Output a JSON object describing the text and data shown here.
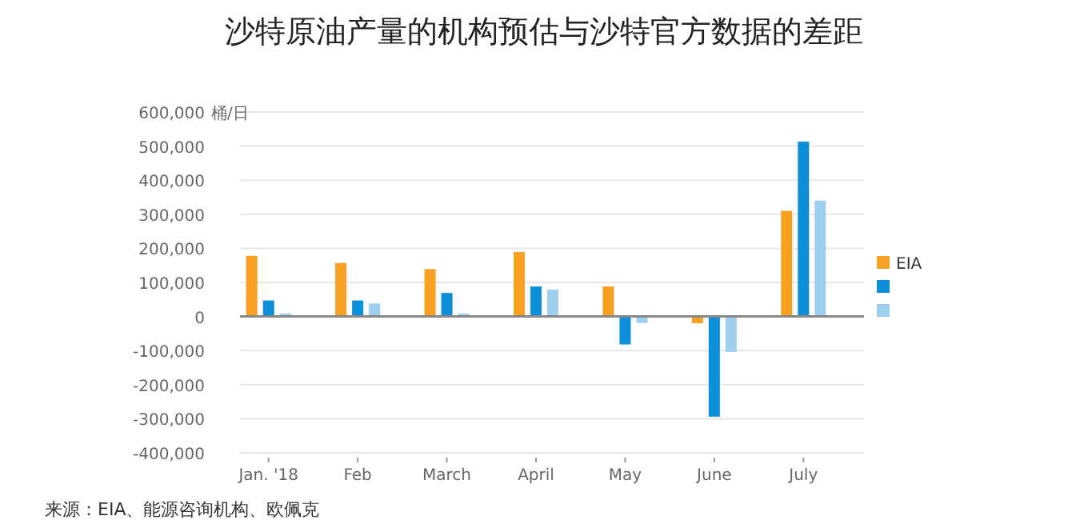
{
  "chart_data": {
    "type": "bar",
    "title": "沙特原油产量的机构预估与沙特官方数据的差距",
    "categories": [
      "Jan. '18",
      "Feb",
      "March",
      "April",
      "May",
      "June",
      "July"
    ],
    "series": [
      {
        "name": "EIA",
        "color": "#f7a021",
        "values": [
          178000,
          157000,
          139000,
          189000,
          88000,
          -20000,
          310000
        ]
      },
      {
        "color": "#0a8fd8",
        "values": [
          47000,
          47000,
          69000,
          88000,
          -82000,
          -294000,
          513000
        ]
      },
      {
        "color": "#9fcfee",
        "values": [
          9000,
          38000,
          9000,
          79000,
          -19000,
          -104000,
          340000
        ]
      }
    ],
    "ylim": [
      -400000,
      600000
    ],
    "yticks": [
      {
        "value": -400000,
        "label": "-400,000"
      },
      {
        "value": -300000,
        "label": "-300,000"
      },
      {
        "value": -200000,
        "label": "-200,000"
      },
      {
        "value": -100000,
        "label": "-100,000"
      },
      0,
      {
        "value": 100000,
        "label": "100,000"
      },
      {
        "value": 200000,
        "label": "200,000"
      },
      {
        "value": 300000,
        "label": "300,000"
      },
      {
        "value": 400000,
        "label": "400,000"
      },
      {
        "value": 500000,
        "label": "500,000"
      },
      {
        "value": 600000,
        "label": "600,000"
      }
    ],
    "ylabel": "桶/日",
    "grid": "y",
    "legend": "right",
    "annotations": [
      "来源：EIA、能源咨询机构、欧佩克"
    ]
  }
}
